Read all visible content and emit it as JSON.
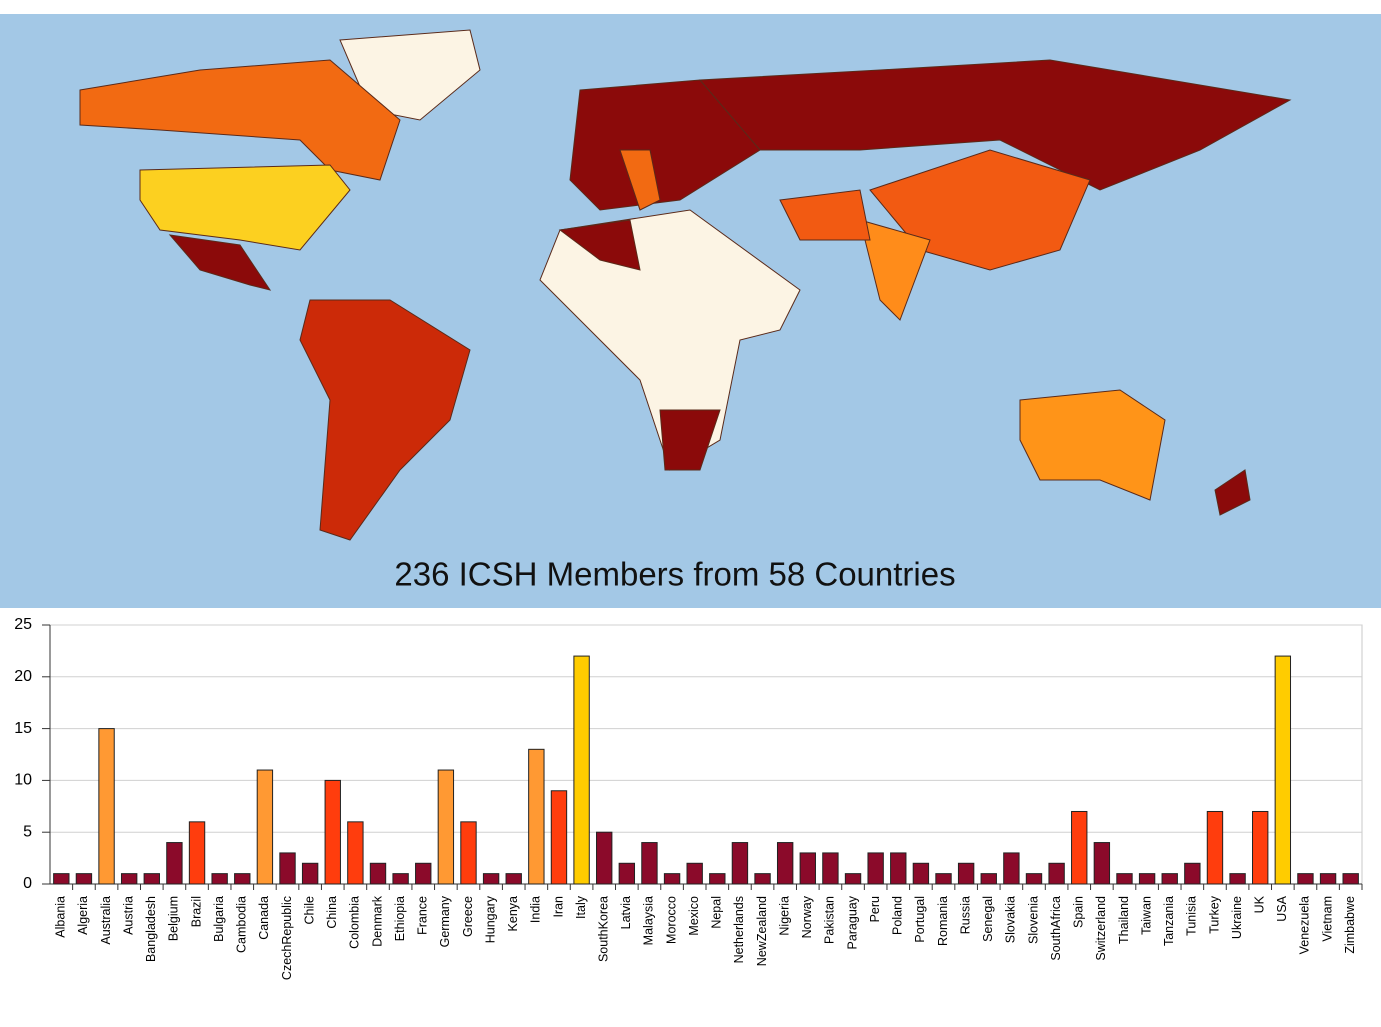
{
  "chart_data": {
    "type": "bar",
    "title": "236 ICSH Members from 58 Countries",
    "categories": [
      "Albania",
      "Algeria",
      "Australia",
      "Austria",
      "Bangladesh",
      "Belgium",
      "Brazil",
      "Bulgaria",
      "Cambodia",
      "Canada",
      "CzechRepublic",
      "Chile",
      "China",
      "Colombia",
      "Denmark",
      "Ethiopia",
      "France",
      "Germany",
      "Greece",
      "Hungary",
      "Kenya",
      "India",
      "Iran",
      "Italy",
      "SouthKorea",
      "Latvia",
      "Malaysia",
      "Morocco",
      "Mexico",
      "Nepal",
      "Netherlands",
      "NewZealand",
      "Nigeria",
      "Norway",
      "Pakistan",
      "Paraguay",
      "Peru",
      "Poland",
      "Portugal",
      "Romania",
      "Russia",
      "Senegal",
      "Slovakia",
      "Slovenia",
      "SouthAfrica",
      "Spain",
      "Switzerland",
      "Thailand",
      "Taiwan",
      "Tanzania",
      "Tunisia",
      "Turkey",
      "Ukraine",
      "UK",
      "USA",
      "Venezuela",
      "Vietnam",
      "Zimbabwe"
    ],
    "values": [
      1,
      1,
      15,
      1,
      1,
      4,
      6,
      1,
      1,
      11,
      3,
      2,
      10,
      6,
      2,
      1,
      2,
      11,
      6,
      1,
      1,
      13,
      9,
      22,
      5,
      2,
      4,
      1,
      2,
      1,
      4,
      1,
      4,
      3,
      3,
      1,
      3,
      3,
      2,
      1,
      2,
      1,
      3,
      1,
      2,
      7,
      4,
      1,
      1,
      1,
      2,
      7,
      1,
      7,
      22,
      1,
      1,
      1
    ],
    "colors": [
      "#8b0a2a",
      "#8b0a2a",
      "#ff9933",
      "#8b0a2a",
      "#8b0a2a",
      "#8b0a2a",
      "#ff3d0d",
      "#8b0a2a",
      "#8b0a2a",
      "#ff9933",
      "#8b0a2a",
      "#8b0a2a",
      "#ff3d0d",
      "#ff3d0d",
      "#8b0a2a",
      "#8b0a2a",
      "#8b0a2a",
      "#ff9933",
      "#ff3d0d",
      "#8b0a2a",
      "#8b0a2a",
      "#ff9933",
      "#ff3d0d",
      "#ffcc00",
      "#8b0a2a",
      "#8b0a2a",
      "#8b0a2a",
      "#8b0a2a",
      "#8b0a2a",
      "#8b0a2a",
      "#8b0a2a",
      "#8b0a2a",
      "#8b0a2a",
      "#8b0a2a",
      "#8b0a2a",
      "#8b0a2a",
      "#8b0a2a",
      "#8b0a2a",
      "#8b0a2a",
      "#8b0a2a",
      "#8b0a2a",
      "#8b0a2a",
      "#8b0a2a",
      "#8b0a2a",
      "#8b0a2a",
      "#ff3d0d",
      "#8b0a2a",
      "#8b0a2a",
      "#8b0a2a",
      "#8b0a2a",
      "#8b0a2a",
      "#ff3d0d",
      "#8b0a2a",
      "#ff3d0d",
      "#ffcc00",
      "#8b0a2a",
      "#8b0a2a",
      "#8b0a2a"
    ],
    "ylim": [
      0,
      25
    ],
    "yticks": [
      0,
      5,
      10,
      15,
      20,
      25
    ],
    "grid": true
  }
}
